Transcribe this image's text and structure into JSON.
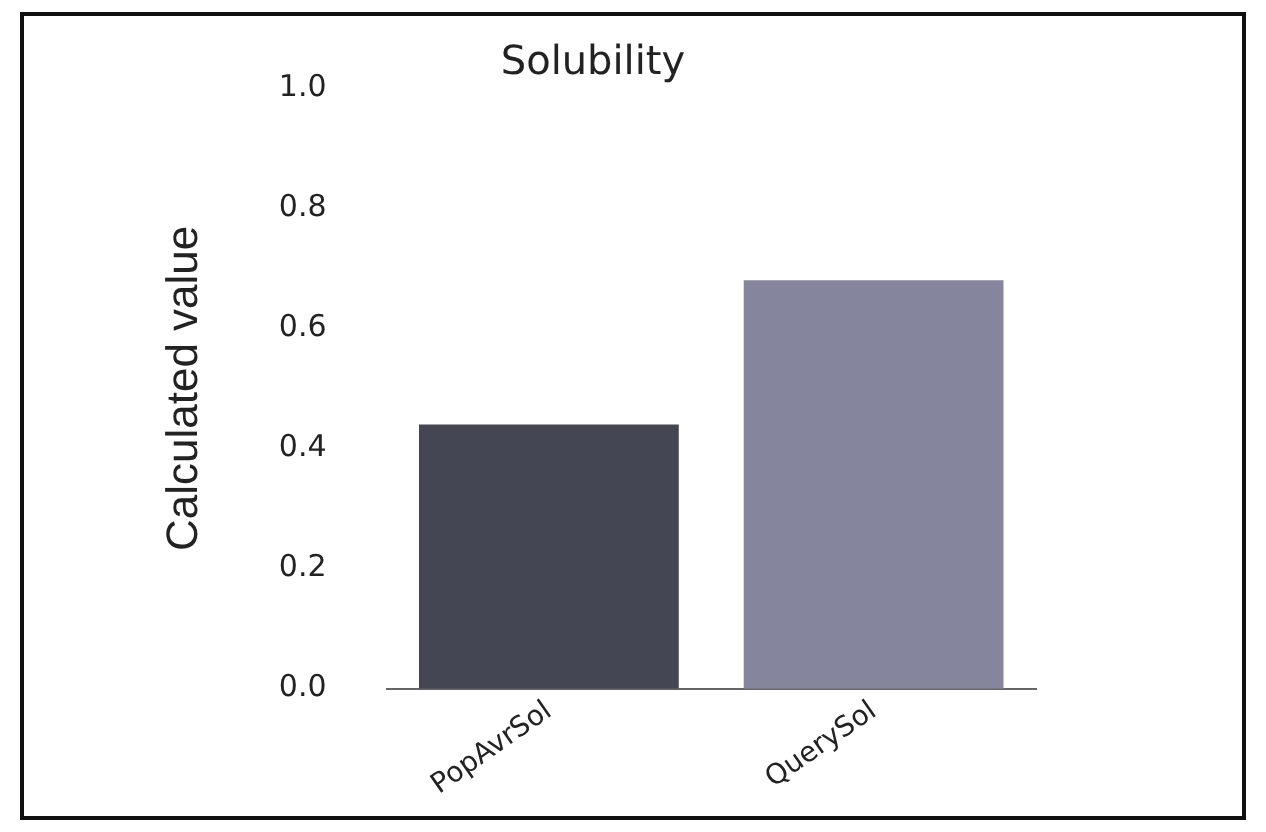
{
  "chart_data": {
    "type": "bar",
    "title": "Solubility",
    "ylabel": "Calculated value",
    "categories": [
      "PopAvrSol",
      "QuerySol"
    ],
    "values": [
      0.44,
      0.68
    ],
    "colors": [
      "#454654",
      "#85869e"
    ],
    "ylim": [
      0,
      1
    ],
    "yticks": [
      {
        "value": 0,
        "label": "0.0"
      },
      0.2,
      0.4,
      0.6,
      0.8,
      {
        "value": 1,
        "label": "1.0"
      }
    ],
    "grid": false,
    "legend": false
  }
}
